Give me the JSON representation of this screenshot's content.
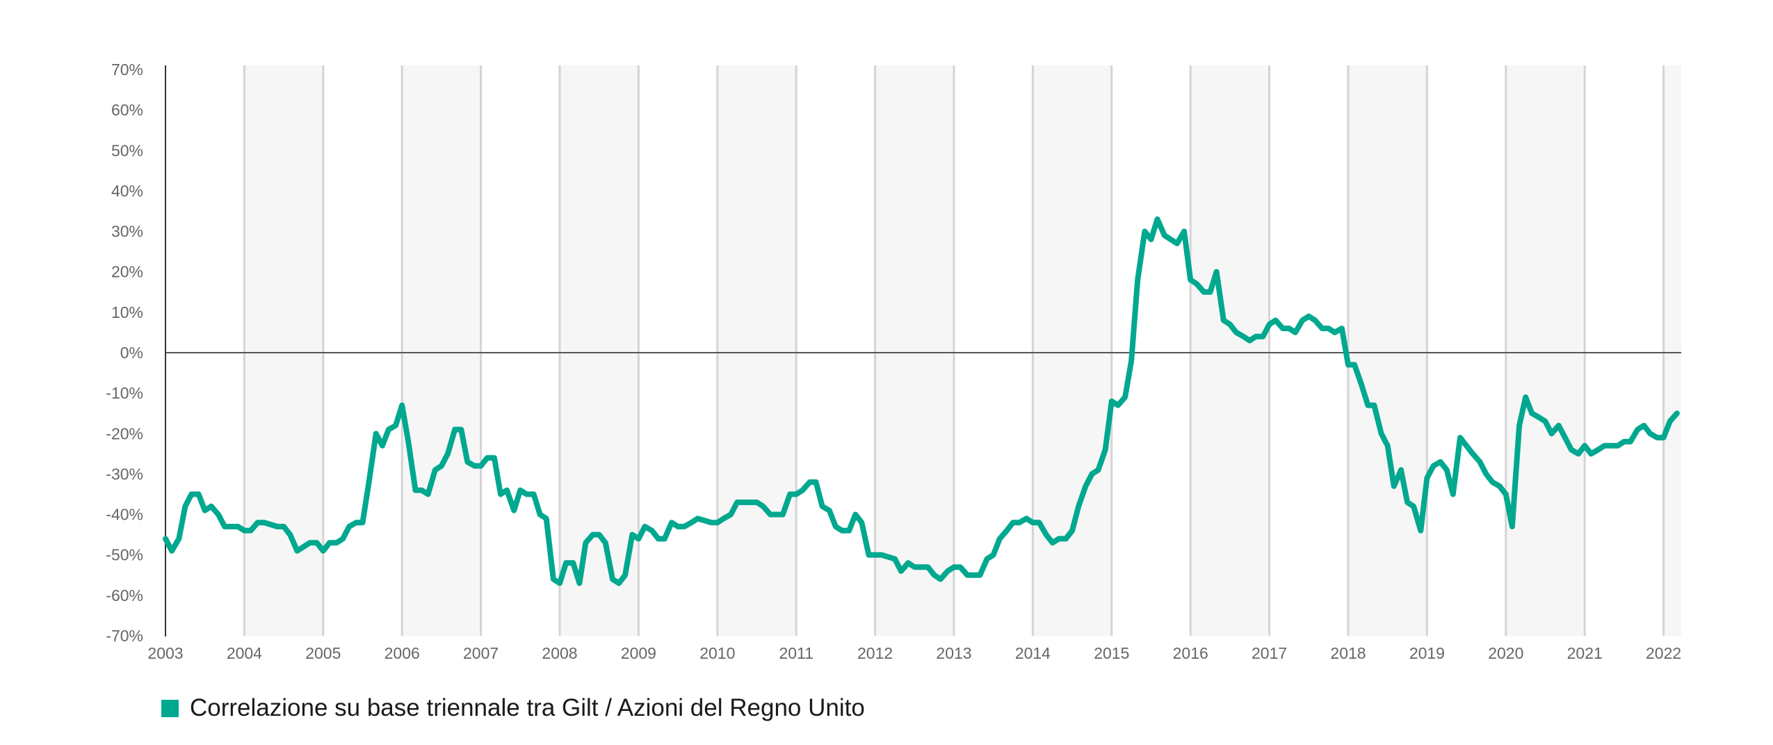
{
  "chart_data": {
    "type": "line",
    "title": "",
    "xlabel": "",
    "ylabel": "",
    "xlim": [
      2003,
      2022.25
    ],
    "ylim": [
      -70,
      70
    ],
    "y_ticks": [
      70,
      60,
      50,
      40,
      30,
      20,
      10,
      0,
      -10,
      -20,
      -30,
      -40,
      -50,
      -60,
      -70
    ],
    "y_tick_labels": [
      "70%",
      "60%",
      "50%",
      "40%",
      "30%",
      "20%",
      "10%",
      "0%",
      "-10%",
      "-20%",
      "-30%",
      "-40%",
      "-50%",
      "-60%",
      "-70%"
    ],
    "x_ticks": [
      2003,
      2004,
      2005,
      2006,
      2007,
      2008,
      2009,
      2010,
      2011,
      2012,
      2013,
      2014,
      2015,
      2016,
      2017,
      2018,
      2019,
      2020,
      2021,
      2022
    ],
    "x_tick_labels": [
      "2003",
      "2004",
      "2005",
      "2006",
      "2007",
      "2008",
      "2009",
      "2010",
      "2011",
      "2012",
      "2013",
      "2014",
      "2015",
      "2016",
      "2017",
      "2018",
      "2019",
      "2020",
      "2021",
      "2022"
    ],
    "shaded_bands": [
      [
        2004,
        2005
      ],
      [
        2006,
        2007
      ],
      [
        2008,
        2009
      ],
      [
        2010,
        2011
      ],
      [
        2012,
        2013
      ],
      [
        2014,
        2015
      ],
      [
        2016,
        2017
      ],
      [
        2018,
        2019
      ],
      [
        2020,
        2021
      ],
      [
        2022,
        2022.25
      ]
    ],
    "grid": "vertical",
    "legend_position": "bottom-left",
    "series": [
      {
        "name": "Correlazione su base triennale tra Gilt / Azioni del Regno Unito",
        "color": "#00a88f",
        "points": [
          [
            2003.0,
            -46
          ],
          [
            2003.08,
            -49
          ],
          [
            2003.17,
            -46
          ],
          [
            2003.25,
            -38
          ],
          [
            2003.33,
            -35
          ],
          [
            2003.42,
            -35
          ],
          [
            2003.5,
            -39
          ],
          [
            2003.58,
            -38
          ],
          [
            2003.67,
            -40
          ],
          [
            2003.75,
            -43
          ],
          [
            2003.92,
            -43
          ],
          [
            2004.0,
            -44
          ],
          [
            2004.08,
            -44
          ],
          [
            2004.17,
            -42
          ],
          [
            2004.25,
            -42
          ],
          [
            2004.42,
            -43
          ],
          [
            2004.5,
            -43
          ],
          [
            2004.58,
            -45
          ],
          [
            2004.67,
            -49
          ],
          [
            2004.75,
            -48
          ],
          [
            2004.83,
            -47
          ],
          [
            2004.92,
            -47
          ],
          [
            2005.0,
            -49
          ],
          [
            2005.08,
            -47
          ],
          [
            2005.17,
            -47
          ],
          [
            2005.25,
            -46
          ],
          [
            2005.33,
            -43
          ],
          [
            2005.42,
            -42
          ],
          [
            2005.5,
            -42
          ],
          [
            2005.58,
            -32
          ],
          [
            2005.67,
            -20
          ],
          [
            2005.75,
            -23
          ],
          [
            2005.83,
            -19
          ],
          [
            2005.92,
            -18
          ],
          [
            2006.0,
            -13
          ],
          [
            2006.08,
            -22
          ],
          [
            2006.17,
            -34
          ],
          [
            2006.25,
            -34
          ],
          [
            2006.33,
            -35
          ],
          [
            2006.42,
            -29
          ],
          [
            2006.5,
            -28
          ],
          [
            2006.58,
            -25
          ],
          [
            2006.67,
            -19
          ],
          [
            2006.75,
            -19
          ],
          [
            2006.83,
            -27
          ],
          [
            2006.92,
            -28
          ],
          [
            2007.0,
            -28
          ],
          [
            2007.08,
            -26
          ],
          [
            2007.17,
            -26
          ],
          [
            2007.25,
            -35
          ],
          [
            2007.33,
            -34
          ],
          [
            2007.42,
            -39
          ],
          [
            2007.5,
            -34
          ],
          [
            2007.58,
            -35
          ],
          [
            2007.67,
            -35
          ],
          [
            2007.75,
            -40
          ],
          [
            2007.83,
            -41
          ],
          [
            2007.92,
            -56
          ],
          [
            2008.0,
            -57
          ],
          [
            2008.08,
            -52
          ],
          [
            2008.17,
            -52
          ],
          [
            2008.25,
            -57
          ],
          [
            2008.33,
            -47
          ],
          [
            2008.42,
            -45
          ],
          [
            2008.5,
            -45
          ],
          [
            2008.58,
            -47
          ],
          [
            2008.67,
            -56
          ],
          [
            2008.75,
            -57
          ],
          [
            2008.83,
            -55
          ],
          [
            2008.92,
            -45
          ],
          [
            2009.0,
            -46
          ],
          [
            2009.08,
            -43
          ],
          [
            2009.17,
            -44
          ],
          [
            2009.25,
            -46
          ],
          [
            2009.33,
            -46
          ],
          [
            2009.42,
            -42
          ],
          [
            2009.5,
            -43
          ],
          [
            2009.58,
            -43
          ],
          [
            2009.67,
            -42
          ],
          [
            2009.75,
            -41
          ],
          [
            2009.92,
            -42
          ],
          [
            2010.0,
            -42
          ],
          [
            2010.08,
            -41
          ],
          [
            2010.17,
            -40
          ],
          [
            2010.25,
            -37
          ],
          [
            2010.42,
            -37
          ],
          [
            2010.5,
            -37
          ],
          [
            2010.58,
            -38
          ],
          [
            2010.67,
            -40
          ],
          [
            2010.83,
            -40
          ],
          [
            2010.92,
            -35
          ],
          [
            2011.0,
            -35
          ],
          [
            2011.08,
            -34
          ],
          [
            2011.17,
            -32
          ],
          [
            2011.25,
            -32
          ],
          [
            2011.33,
            -38
          ],
          [
            2011.42,
            -39
          ],
          [
            2011.5,
            -43
          ],
          [
            2011.58,
            -44
          ],
          [
            2011.67,
            -44
          ],
          [
            2011.75,
            -40
          ],
          [
            2011.83,
            -42
          ],
          [
            2011.92,
            -50
          ],
          [
            2012.08,
            -50
          ],
          [
            2012.25,
            -51
          ],
          [
            2012.33,
            -54
          ],
          [
            2012.42,
            -52
          ],
          [
            2012.5,
            -53
          ],
          [
            2012.67,
            -53
          ],
          [
            2012.75,
            -55
          ],
          [
            2012.83,
            -56
          ],
          [
            2012.92,
            -54
          ],
          [
            2013.0,
            -53
          ],
          [
            2013.08,
            -53
          ],
          [
            2013.17,
            -55
          ],
          [
            2013.25,
            -55
          ],
          [
            2013.33,
            -55
          ],
          [
            2013.42,
            -51
          ],
          [
            2013.5,
            -50
          ],
          [
            2013.58,
            -46
          ],
          [
            2013.67,
            -44
          ],
          [
            2013.75,
            -42
          ],
          [
            2013.83,
            -42
          ],
          [
            2013.92,
            -41
          ],
          [
            2014.0,
            -42
          ],
          [
            2014.08,
            -42
          ],
          [
            2014.17,
            -45
          ],
          [
            2014.25,
            -47
          ],
          [
            2014.33,
            -46
          ],
          [
            2014.42,
            -46
          ],
          [
            2014.5,
            -44
          ],
          [
            2014.58,
            -38
          ],
          [
            2014.67,
            -33
          ],
          [
            2014.75,
            -30
          ],
          [
            2014.83,
            -29
          ],
          [
            2014.92,
            -24
          ],
          [
            2015.0,
            -12
          ],
          [
            2015.08,
            -13
          ],
          [
            2015.17,
            -11
          ],
          [
            2015.25,
            -2
          ],
          [
            2015.33,
            18
          ],
          [
            2015.42,
            30
          ],
          [
            2015.5,
            28
          ],
          [
            2015.58,
            33
          ],
          [
            2015.67,
            29
          ],
          [
            2015.75,
            28
          ],
          [
            2015.83,
            27
          ],
          [
            2015.92,
            30
          ],
          [
            2016.0,
            18
          ],
          [
            2016.08,
            17
          ],
          [
            2016.17,
            15
          ],
          [
            2016.25,
            15
          ],
          [
            2016.33,
            20
          ],
          [
            2016.42,
            8
          ],
          [
            2016.5,
            7
          ],
          [
            2016.58,
            5
          ],
          [
            2016.67,
            4
          ],
          [
            2016.75,
            3
          ],
          [
            2016.83,
            4
          ],
          [
            2016.92,
            4
          ],
          [
            2017.0,
            7
          ],
          [
            2017.08,
            8
          ],
          [
            2017.17,
            6
          ],
          [
            2017.25,
            6
          ],
          [
            2017.33,
            5
          ],
          [
            2017.42,
            8
          ],
          [
            2017.5,
            9
          ],
          [
            2017.58,
            8
          ],
          [
            2017.67,
            6
          ],
          [
            2017.75,
            6
          ],
          [
            2017.83,
            5
          ],
          [
            2017.92,
            6
          ],
          [
            2018.0,
            -3
          ],
          [
            2018.08,
            -3
          ],
          [
            2018.17,
            -8
          ],
          [
            2018.25,
            -13
          ],
          [
            2018.33,
            -13
          ],
          [
            2018.42,
            -20
          ],
          [
            2018.5,
            -23
          ],
          [
            2018.58,
            -33
          ],
          [
            2018.67,
            -29
          ],
          [
            2018.75,
            -37
          ],
          [
            2018.83,
            -38
          ],
          [
            2018.92,
            -44
          ],
          [
            2019.0,
            -31
          ],
          [
            2019.08,
            -28
          ],
          [
            2019.17,
            -27
          ],
          [
            2019.25,
            -29
          ],
          [
            2019.33,
            -35
          ],
          [
            2019.42,
            -21
          ],
          [
            2019.5,
            -23
          ],
          [
            2019.58,
            -25
          ],
          [
            2019.67,
            -27
          ],
          [
            2019.75,
            -30
          ],
          [
            2019.83,
            -32
          ],
          [
            2019.92,
            -33
          ],
          [
            2020.0,
            -35
          ],
          [
            2020.08,
            -43
          ],
          [
            2020.17,
            -18
          ],
          [
            2020.25,
            -11
          ],
          [
            2020.33,
            -15
          ],
          [
            2020.42,
            -16
          ],
          [
            2020.5,
            -17
          ],
          [
            2020.58,
            -20
          ],
          [
            2020.67,
            -18
          ],
          [
            2020.75,
            -21
          ],
          [
            2020.83,
            -24
          ],
          [
            2020.92,
            -25
          ],
          [
            2021.0,
            -23
          ],
          [
            2021.08,
            -25
          ],
          [
            2021.17,
            -24
          ],
          [
            2021.25,
            -23
          ],
          [
            2021.42,
            -23
          ],
          [
            2021.5,
            -22
          ],
          [
            2021.58,
            -22
          ],
          [
            2021.67,
            -19
          ],
          [
            2021.75,
            -18
          ],
          [
            2021.83,
            -20
          ],
          [
            2021.92,
            -21
          ],
          [
            2022.0,
            -21
          ],
          [
            2022.08,
            -17
          ],
          [
            2022.17,
            -15
          ]
        ]
      }
    ]
  }
}
